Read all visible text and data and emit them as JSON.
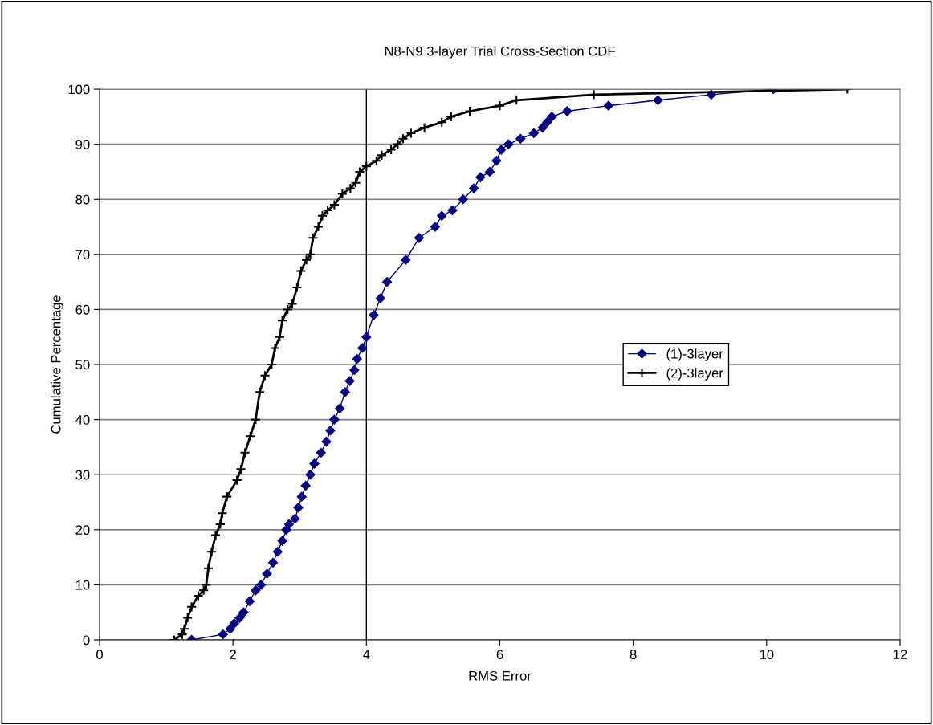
{
  "chart_data": {
    "type": "line",
    "title": "N8-N9 3-layer Trial Cross-Section CDF",
    "xlabel": "RMS Error",
    "ylabel": "Cumulative Percentage",
    "xlim": [
      0,
      12
    ],
    "xticks": [
      0,
      2,
      4,
      6,
      8,
      10,
      12
    ],
    "ylim": [
      0,
      100
    ],
    "yticks": [
      0,
      10,
      20,
      30,
      40,
      50,
      60,
      70,
      80,
      90,
      100
    ],
    "grid": "y",
    "legend": "right",
    "ref_lines": [
      {
        "axis": "x",
        "value": 4,
        "color": "#000000"
      }
    ],
    "series": [
      {
        "name": "(1)-3layer",
        "color": "#000080",
        "marker": "diamond",
        "x": [
          1.38,
          1.85,
          1.96,
          2.02,
          2.1,
          2.16,
          2.25,
          2.34,
          2.42,
          2.51,
          2.6,
          2.67,
          2.74,
          2.8,
          2.84,
          2.93,
          2.98,
          3.03,
          3.09,
          3.16,
          3.22,
          3.32,
          3.4,
          3.46,
          3.52,
          3.6,
          3.68,
          3.75,
          3.82,
          3.86,
          3.94,
          4.0,
          4.11,
          4.21,
          4.31,
          4.59,
          4.79,
          5.03,
          5.13,
          5.29,
          5.45,
          5.61,
          5.71,
          5.85,
          5.95,
          6.02,
          6.13,
          6.31,
          6.51,
          6.64,
          6.71,
          6.78,
          7.01,
          7.63,
          8.37,
          9.17,
          10.1
        ],
        "values": [
          0,
          1,
          2,
          3,
          4,
          5,
          7,
          9,
          10,
          12,
          14,
          16,
          18,
          20,
          21,
          22,
          24,
          26,
          28,
          30,
          32,
          34,
          36,
          38,
          40,
          42,
          45,
          47,
          49,
          51,
          53,
          55,
          59,
          62,
          65,
          69,
          73,
          75,
          77,
          78,
          80,
          82,
          84,
          85,
          87,
          89,
          90,
          91,
          92,
          93,
          94,
          95,
          96,
          97,
          98,
          99,
          100
        ]
      },
      {
        "name": "(2)-3layer",
        "color": "#000000",
        "marker": "cross",
        "x": [
          1.12,
          1.24,
          1.27,
          1.32,
          1.38,
          1.48,
          1.56,
          1.6,
          1.63,
          1.68,
          1.74,
          1.81,
          1.84,
          1.91,
          2.06,
          2.12,
          2.18,
          2.26,
          2.34,
          2.4,
          2.48,
          2.58,
          2.63,
          2.7,
          2.74,
          2.82,
          2.89,
          2.96,
          3.02,
          3.1,
          3.16,
          3.2,
          3.28,
          3.34,
          3.42,
          3.52,
          3.64,
          3.76,
          3.84,
          3.9,
          4.0,
          4.15,
          4.23,
          4.37,
          4.47,
          4.55,
          4.67,
          4.87,
          5.13,
          5.27,
          5.55,
          6.0,
          6.25,
          7.41,
          11.21
        ],
        "values": [
          0,
          1,
          2,
          4,
          6,
          8,
          9,
          10,
          13,
          16,
          19,
          21,
          23,
          26,
          29,
          31,
          34,
          37,
          40,
          45,
          48,
          50,
          53,
          55,
          58,
          60,
          61,
          64,
          67,
          69,
          70,
          73,
          75,
          77,
          78,
          79,
          81,
          82,
          83,
          85,
          86,
          87,
          88,
          89,
          90,
          91,
          92,
          93,
          94,
          95,
          96,
          97,
          98,
          99,
          100
        ]
      }
    ]
  }
}
